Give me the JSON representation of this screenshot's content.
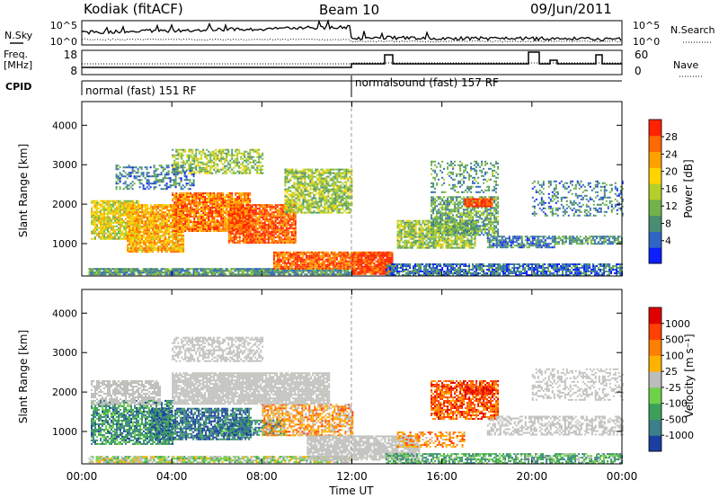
{
  "header": {
    "station": "Kodiak (fitACF)",
    "beam": "Beam 10",
    "date": "09/Jun/2011"
  },
  "noise_panel": {
    "left_label": "N.Sky",
    "right_label": "N.Search",
    "left_ticks": [
      "10^5",
      "10^0"
    ],
    "right_ticks": [
      "10^5",
      "10^0"
    ]
  },
  "freq_panel": {
    "left_label_1": "Freq.",
    "left_label_2": "[MHz]",
    "right_label": "Nave",
    "left_ticks": [
      "18",
      "8"
    ],
    "right_ticks": [
      "60",
      "0"
    ]
  },
  "cpid": {
    "label": "CPID",
    "modes": [
      {
        "name": "normal (fast) 151 RF",
        "start_hour": 0,
        "end_hour": 12
      },
      {
        "name": "normalsound (fast) 157 RF",
        "start_hour": 12,
        "end_hour": 24
      }
    ]
  },
  "chart_data": [
    {
      "type": "heatmap",
      "title": "",
      "xlabel": "",
      "ylabel": "Slant Range [km]",
      "xlim": [
        0,
        24
      ],
      "ylim": [
        180,
        4600
      ],
      "y_ticks": [
        "1000",
        "2000",
        "3000",
        "4000"
      ],
      "x_ticks": [
        "00:00",
        "04:00",
        "08:00",
        "12:00",
        "16:00",
        "20:00",
        "00:00"
      ],
      "colorbar_label": "Power [dB]",
      "colorbar_ticks": [
        "4",
        "8",
        "12",
        "16",
        "20",
        "24",
        "28"
      ],
      "colorbar_colors": [
        "#0b1fff",
        "#2f66c4",
        "#4a8d72",
        "#6fb34a",
        "#b4cf2a",
        "#ffd400",
        "#ffa200",
        "#ff6a00",
        "#ff2200"
      ],
      "regions": [
        {
          "t0": 0.3,
          "t1": 12.0,
          "r0": 220,
          "r1": 380,
          "level": 0.3,
          "density": 0.9
        },
        {
          "t0": 8.5,
          "t1": 12.0,
          "r0": 350,
          "r1": 800,
          "level": 0.85,
          "density": 0.9
        },
        {
          "t0": 12.0,
          "t1": 13.8,
          "r0": 250,
          "r1": 800,
          "level": 0.9,
          "density": 0.95
        },
        {
          "t0": 0.4,
          "t1": 2.5,
          "r0": 1100,
          "r1": 2100,
          "level": 0.55,
          "density": 0.85
        },
        {
          "t0": 2.0,
          "t1": 4.5,
          "r0": 800,
          "r1": 2000,
          "level": 0.7,
          "density": 0.9
        },
        {
          "t0": 4.0,
          "t1": 7.5,
          "r0": 1300,
          "r1": 2300,
          "level": 0.8,
          "density": 0.9
        },
        {
          "t0": 6.5,
          "t1": 9.5,
          "r0": 1000,
          "r1": 2000,
          "level": 0.85,
          "density": 0.9
        },
        {
          "t0": 9.0,
          "t1": 12.0,
          "r0": 1800,
          "r1": 2900,
          "level": 0.45,
          "density": 0.75
        },
        {
          "t0": 4.0,
          "t1": 8.0,
          "r0": 2800,
          "r1": 3400,
          "level": 0.45,
          "density": 0.6
        },
        {
          "t0": 1.5,
          "t1": 5.0,
          "r0": 2400,
          "r1": 3000,
          "level": 0.25,
          "density": 0.45
        },
        {
          "t0": 13.5,
          "t1": 24.0,
          "r0": 220,
          "r1": 500,
          "level": 0.2,
          "density": 0.8
        },
        {
          "t0": 14.0,
          "t1": 17.5,
          "r0": 900,
          "r1": 1600,
          "level": 0.45,
          "density": 0.8
        },
        {
          "t0": 15.5,
          "t1": 18.5,
          "r0": 1200,
          "r1": 2200,
          "level": 0.35,
          "density": 0.7
        },
        {
          "t0": 17.0,
          "t1": 18.2,
          "r0": 1950,
          "r1": 2150,
          "level": 0.9,
          "density": 0.95
        },
        {
          "t0": 18.0,
          "t1": 21.0,
          "r0": 900,
          "r1": 1200,
          "level": 0.25,
          "density": 0.7
        },
        {
          "t0": 21.0,
          "t1": 24.0,
          "r0": 1000,
          "r1": 1200,
          "level": 0.3,
          "density": 0.7
        },
        {
          "t0": 15.5,
          "t1": 18.5,
          "r0": 2300,
          "r1": 3100,
          "level": 0.3,
          "density": 0.35
        },
        {
          "t0": 20.0,
          "t1": 24.0,
          "r0": 1700,
          "r1": 2600,
          "level": 0.25,
          "density": 0.3
        }
      ]
    },
    {
      "type": "heatmap",
      "title": "",
      "xlabel": "Time UT",
      "ylabel": "Slant Range [km]",
      "xlim": [
        0,
        24
      ],
      "ylim": [
        180,
        4600
      ],
      "y_ticks": [
        "1000",
        "2000",
        "3000",
        "4000"
      ],
      "x_ticks": [
        "00:00",
        "04:00",
        "08:00",
        "12:00",
        "16:00",
        "20:00",
        "00:00"
      ],
      "colorbar_label": "Velocity [m s⁻¹]",
      "colorbar_ticks": [
        "1000",
        "500",
        "100",
        "25",
        "-25",
        "-100",
        "-500",
        "-1000"
      ],
      "colorbar_colors": [
        "#1b3fa0",
        "#3b7f8a",
        "#3ca05a",
        "#6fd04a",
        "#bcbcbc",
        "#ffb300",
        "#ff8000",
        "#ff4000",
        "#e00000"
      ],
      "ground_scatter_color": "#c0c0bc",
      "regions": [
        {
          "t0": 0.3,
          "t1": 12.0,
          "r0": 220,
          "r1": 380,
          "level": 0.45,
          "density": 0.8
        },
        {
          "t0": 0.4,
          "t1": 4.0,
          "r0": 700,
          "r1": 1800,
          "level": 0.25,
          "density": 0.75
        },
        {
          "t0": 3.0,
          "t1": 7.5,
          "r0": 800,
          "r1": 1600,
          "level": 0.15,
          "density": 0.8
        },
        {
          "t0": 6.0,
          "t1": 9.0,
          "r0": 900,
          "r1": 1300,
          "level": 0.2,
          "density": 0.7
        },
        {
          "t0": 8.0,
          "t1": 12.0,
          "r0": 900,
          "r1": 1700,
          "level": 0.65,
          "density": 0.65
        },
        {
          "t0": 4.0,
          "t1": 11.0,
          "r0": 1700,
          "r1": 2500,
          "level": -1,
          "density": 0.85
        },
        {
          "t0": 0.4,
          "t1": 3.5,
          "r0": 1700,
          "r1": 2300,
          "level": -1,
          "density": 0.7
        },
        {
          "t0": 4.0,
          "t1": 8.0,
          "r0": 2800,
          "r1": 3400,
          "level": -1,
          "density": 0.55
        },
        {
          "t0": 10.0,
          "t1": 15.0,
          "r0": 300,
          "r1": 900,
          "level": -1,
          "density": 0.85
        },
        {
          "t0": 15.5,
          "t1": 18.5,
          "r0": 1300,
          "r1": 2300,
          "level": 0.8,
          "density": 0.75
        },
        {
          "t0": 17.0,
          "t1": 18.2,
          "r0": 1950,
          "r1": 2150,
          "level": 0.9,
          "density": 0.95
        },
        {
          "t0": 13.5,
          "t1": 24.0,
          "r0": 220,
          "r1": 450,
          "level": 0.3,
          "density": 0.7
        },
        {
          "t0": 18.0,
          "t1": 24.0,
          "r0": 900,
          "r1": 1400,
          "level": -1,
          "density": 0.55
        },
        {
          "t0": 20.0,
          "t1": 24.0,
          "r0": 1800,
          "r1": 2600,
          "level": -1,
          "density": 0.35
        },
        {
          "t0": 14.0,
          "t1": 17.0,
          "r0": 600,
          "r1": 1000,
          "level": 0.7,
          "density": 0.5
        }
      ]
    }
  ]
}
